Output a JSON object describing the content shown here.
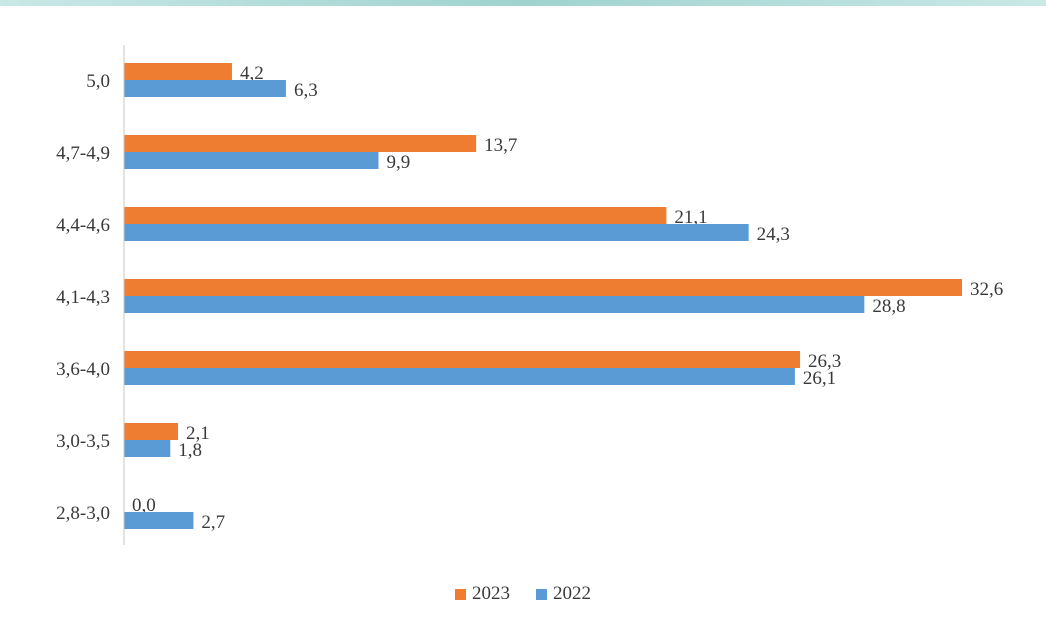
{
  "colors": {
    "s2023": "#ee7d31",
    "s2022": "#5a9bd5",
    "axis": "#c8c8c8"
  },
  "chart_data": {
    "type": "bar",
    "orientation": "horizontal",
    "categories": [
      "5,0",
      "4,7-4,9",
      "4,4-4,6",
      "4,1-4,3",
      "3,6-4,0",
      "3,0-3,5",
      "2,8-3,0"
    ],
    "series": [
      {
        "name": "2023",
        "values": [
          4.2,
          13.7,
          21.1,
          32.6,
          26.3,
          2.1,
          0.0
        ],
        "labels": [
          "4,2",
          "13,7",
          "21,1",
          "32,6",
          "26,3",
          "2,1",
          "0,0"
        ]
      },
      {
        "name": "2022",
        "values": [
          6.3,
          9.9,
          24.3,
          28.8,
          26.1,
          1.8,
          2.7
        ],
        "labels": [
          "6,3",
          "9,9",
          "24,3",
          "28,8",
          "26,1",
          "1,8",
          "2,7"
        ]
      }
    ],
    "xlim": [
      0,
      35
    ],
    "grid": false,
    "legend_position": "bottom"
  }
}
